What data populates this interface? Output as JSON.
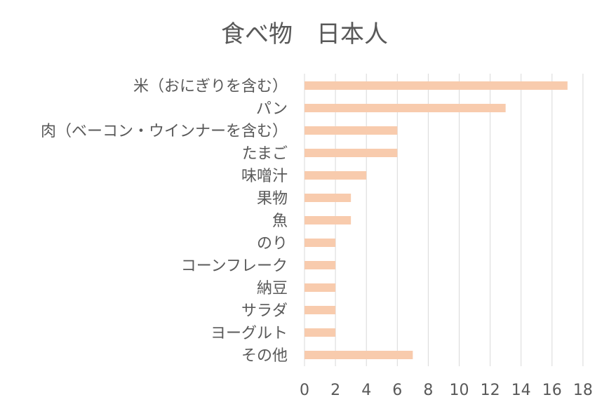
{
  "chart_data": {
    "type": "bar",
    "orientation": "horizontal",
    "title": "食べ物　日本人",
    "xlabel": "",
    "ylabel": "",
    "categories": [
      "米（おにぎりを含む）",
      "パン",
      "肉（ベーコン・ウインナーを含む）",
      "たまご",
      "味噌汁",
      "果物",
      "魚",
      "のり",
      "コーンフレーク",
      "納豆",
      "サラダ",
      "ヨーグルト",
      "その他"
    ],
    "values": [
      17,
      13,
      6,
      6,
      4,
      3,
      3,
      2,
      2,
      2,
      2,
      2,
      7
    ],
    "xlim": [
      0,
      18
    ],
    "xticks": [
      0,
      2,
      4,
      6,
      8,
      10,
      12,
      14,
      16,
      18
    ],
    "grid": true,
    "bar_color": "#f8cbad",
    "legend": "none"
  }
}
